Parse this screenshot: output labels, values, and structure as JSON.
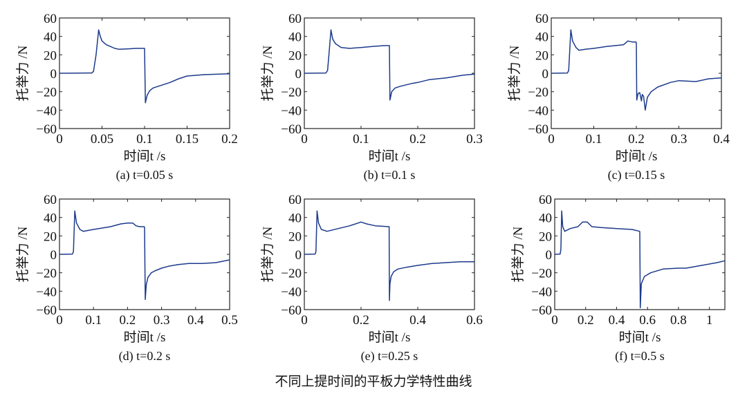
{
  "figure_title": "不同上提时间的平板力学特性曲线",
  "line_color": "#1c3a8c",
  "chart_data": [
    {
      "type": "line",
      "caption": "(a) t=0.05 s",
      "xlabel": "时间t /s",
      "ylabel": "托举力 /N",
      "xlim": [
        0,
        0.2
      ],
      "ylim": [
        -60,
        60
      ],
      "xticks": [
        0,
        0.05,
        0.1,
        0.15,
        0.2
      ],
      "xtick_labels": [
        "0",
        "0.05",
        "0.1",
        "0.15",
        "0.2"
      ],
      "yticks": [
        -60,
        -40,
        -20,
        0,
        20,
        40,
        60
      ],
      "ytick_labels": [
        "−60",
        "−40",
        "−20",
        "0",
        "20",
        "40",
        "60"
      ],
      "grid": false,
      "x": [
        0,
        0.038,
        0.04,
        0.043,
        0.046,
        0.048,
        0.05,
        0.055,
        0.06,
        0.065,
        0.07,
        0.08,
        0.09,
        0.0995,
        0.1,
        0.101,
        0.103,
        0.106,
        0.11,
        0.12,
        0.13,
        0.14,
        0.15,
        0.17,
        0.2
      ],
      "y": [
        0,
        0.3,
        2,
        20,
        47,
        40,
        35,
        31,
        29,
        27,
        26,
        26.5,
        27,
        27,
        27,
        -32,
        -24,
        -19,
        -16,
        -13,
        -10,
        -6,
        -3,
        -1.5,
        -0.5
      ]
    },
    {
      "type": "line",
      "caption": "(b) t=0.1 s",
      "xlabel": "时间t /s",
      "ylabel": "托举力 /N",
      "xlim": [
        0,
        0.3
      ],
      "ylim": [
        -60,
        60
      ],
      "xticks": [
        0,
        0.1,
        0.2,
        0.3
      ],
      "xtick_labels": [
        "0",
        "0.1",
        "0.2",
        "0.3"
      ],
      "yticks": [
        -60,
        -40,
        -20,
        0,
        20,
        40,
        60
      ],
      "ytick_labels": [
        "−60",
        "−40",
        "−20",
        "0",
        "20",
        "40",
        "60"
      ],
      "grid": false,
      "x": [
        0,
        0.038,
        0.041,
        0.044,
        0.047,
        0.05,
        0.055,
        0.065,
        0.08,
        0.1,
        0.12,
        0.14,
        0.15,
        0.151,
        0.154,
        0.16,
        0.17,
        0.19,
        0.2,
        0.22,
        0.25,
        0.28,
        0.3
      ],
      "y": [
        0,
        0.3,
        3,
        25,
        47,
        37,
        32,
        28,
        27,
        28,
        29,
        30,
        30,
        -29,
        -20,
        -16,
        -14,
        -11,
        -10,
        -7,
        -5,
        -2,
        -1
      ]
    },
    {
      "type": "line",
      "caption": "(c) t=0.15 s",
      "xlabel": "时间t /s",
      "ylabel": "托举力 /N",
      "xlim": [
        0,
        0.4
      ],
      "ylim": [
        -60,
        60
      ],
      "xticks": [
        0,
        0.1,
        0.2,
        0.3,
        0.4
      ],
      "xtick_labels": [
        "0",
        "0.1",
        "0.2",
        "0.3",
        "0.4"
      ],
      "yticks": [
        -60,
        -40,
        -20,
        0,
        20,
        40,
        60
      ],
      "ytick_labels": [
        "−60",
        "−40",
        "−20",
        "0",
        "20",
        "40",
        "60"
      ],
      "grid": false,
      "x": [
        0,
        0.038,
        0.041,
        0.046,
        0.05,
        0.058,
        0.065,
        0.08,
        0.1,
        0.13,
        0.15,
        0.17,
        0.18,
        0.19,
        0.199,
        0.2,
        0.201,
        0.204,
        0.208,
        0.212,
        0.214,
        0.217,
        0.221,
        0.226,
        0.235,
        0.25,
        0.28,
        0.3,
        0.34,
        0.37,
        0.4
      ],
      "y": [
        0,
        0.3,
        3,
        47,
        35,
        28,
        25,
        26,
        27,
        29,
        30,
        31,
        35,
        34,
        34,
        33,
        -29,
        -22,
        -21,
        -30,
        -23,
        -25,
        -40,
        -26,
        -20,
        -15,
        -10,
        -8,
        -9,
        -6,
        -5
      ]
    },
    {
      "type": "line",
      "caption": "(d) t=0.2 s",
      "xlabel": "时间t /s",
      "ylabel": "托举力 /N",
      "xlim": [
        0,
        0.5
      ],
      "ylim": [
        -60,
        60
      ],
      "xticks": [
        0,
        0.1,
        0.2,
        0.3,
        0.4,
        0.5
      ],
      "xtick_labels": [
        "0",
        "0.1",
        "0.2",
        "0.3",
        "0.4",
        "0.5"
      ],
      "yticks": [
        -60,
        -40,
        -20,
        0,
        20,
        40,
        60
      ],
      "ytick_labels": [
        "−60",
        "−40",
        "−20",
        "0",
        "20",
        "40",
        "60"
      ],
      "grid": false,
      "x": [
        0,
        0.038,
        0.041,
        0.045,
        0.05,
        0.06,
        0.07,
        0.1,
        0.15,
        0.18,
        0.2,
        0.215,
        0.225,
        0.235,
        0.249,
        0.25,
        0.252,
        0.255,
        0.26,
        0.27,
        0.28,
        0.3,
        0.32,
        0.35,
        0.38,
        0.42,
        0.46,
        0.5
      ],
      "y": [
        0,
        0.3,
        3,
        47,
        34,
        27,
        25,
        27,
        30,
        33,
        34,
        34,
        31,
        30,
        30,
        29,
        -49,
        -33,
        -25,
        -20,
        -18,
        -15,
        -13,
        -11,
        -10,
        -10,
        -9,
        -6
      ]
    },
    {
      "type": "line",
      "caption": "(e) t=0.25 s",
      "xlabel": "时间t /s",
      "ylabel": "托举力 /N",
      "xlim": [
        0,
        0.6
      ],
      "ylim": [
        -60,
        60
      ],
      "xticks": [
        0,
        0.2,
        0.4,
        0.6
      ],
      "xtick_labels": [
        "0",
        "0.2",
        "0.4",
        "0.6"
      ],
      "yticks": [
        -60,
        -40,
        -20,
        0,
        20,
        40,
        60
      ],
      "ytick_labels": [
        "−60",
        "−40",
        "−20",
        "0",
        "20",
        "40",
        "60"
      ],
      "grid": false,
      "x": [
        0,
        0.038,
        0.041,
        0.045,
        0.05,
        0.06,
        0.08,
        0.12,
        0.16,
        0.2,
        0.22,
        0.25,
        0.299,
        0.3,
        0.302,
        0.306,
        0.315,
        0.33,
        0.36,
        0.4,
        0.45,
        0.5,
        0.55,
        0.6
      ],
      "y": [
        0,
        0.3,
        3,
        47,
        34,
        27,
        25,
        28,
        31,
        35,
        33,
        31,
        30,
        -50,
        -32,
        -24,
        -19,
        -16,
        -14,
        -12,
        -10,
        -9,
        -8,
        -8
      ]
    },
    {
      "type": "line",
      "caption": "(f) t=0.5 s",
      "xlabel": "时间t /s",
      "ylabel": "托举力 /N",
      "xlim": [
        0,
        1.1
      ],
      "ylim": [
        -60,
        60
      ],
      "xticks": [
        0,
        0.2,
        0.4,
        0.6,
        0.8,
        1
      ],
      "xtick_labels": [
        "0",
        "0.2",
        "0.4",
        "0.6",
        "0.8",
        "1"
      ],
      "yticks": [
        -60,
        -40,
        -20,
        0,
        20,
        40,
        60
      ],
      "ytick_labels": [
        "−60",
        "−40",
        "−20",
        "0",
        "20",
        "40",
        "60"
      ],
      "grid": false,
      "x": [
        0,
        0.035,
        0.04,
        0.045,
        0.052,
        0.065,
        0.1,
        0.15,
        0.18,
        0.21,
        0.24,
        0.3,
        0.4,
        0.5,
        0.549,
        0.55,
        0.553,
        0.56,
        0.58,
        0.62,
        0.7,
        0.8,
        0.85,
        0.95,
        1.05,
        1.1
      ],
      "y": [
        0,
        0.3,
        5,
        47,
        30,
        25,
        28,
        30,
        35,
        35,
        30,
        29,
        28,
        27,
        25,
        24,
        -58,
        -32,
        -24,
        -20,
        -16,
        -15,
        -15,
        -12,
        -9,
        -7
      ]
    }
  ]
}
